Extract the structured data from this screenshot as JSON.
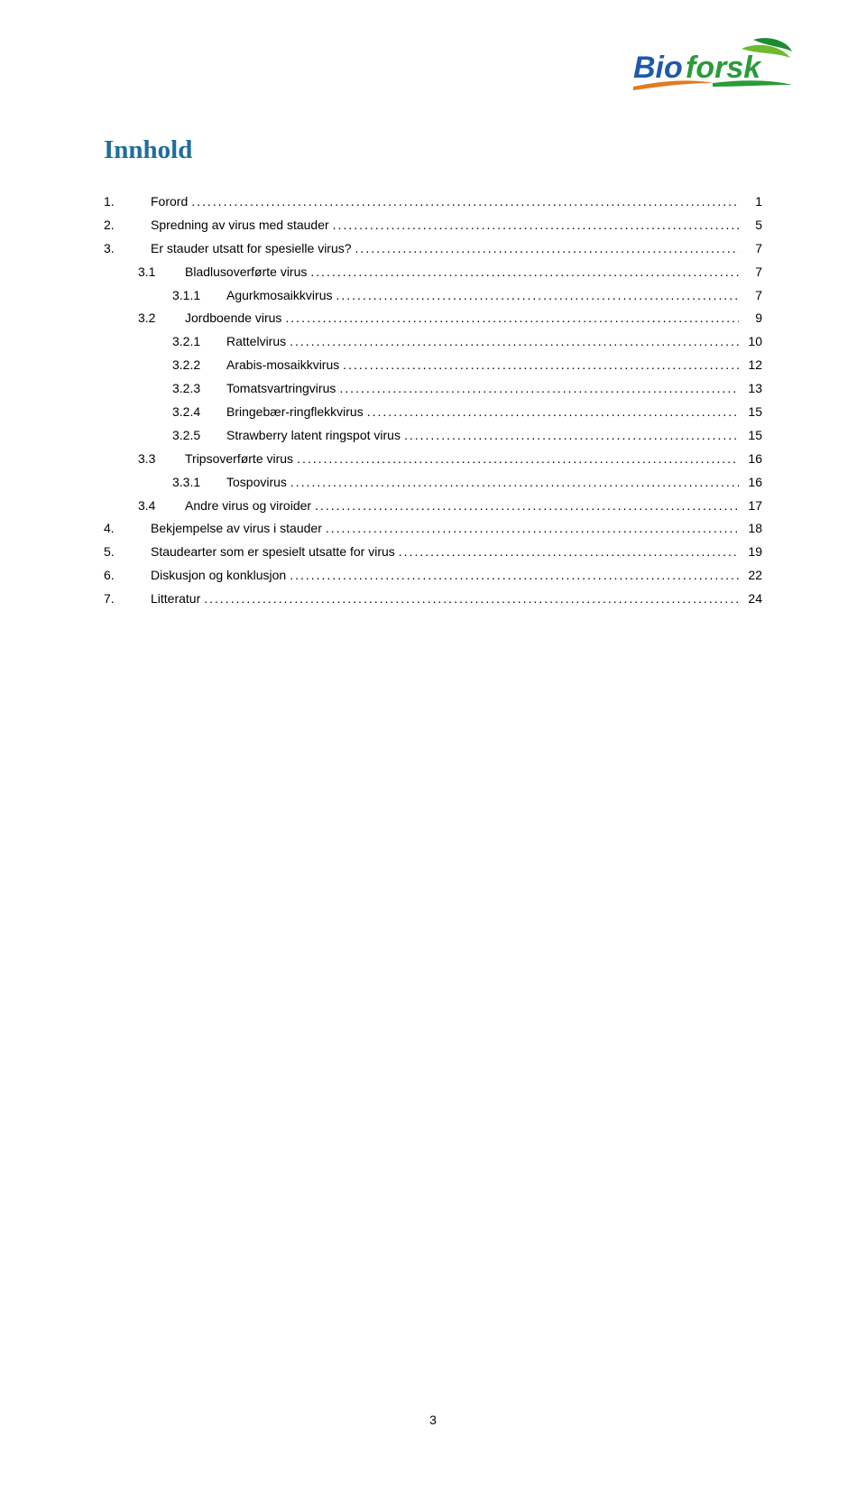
{
  "heading": {
    "text": "Innhold",
    "color": "#1f6e9a"
  },
  "logo": {
    "brand_text_color_left": "#1e5aa8",
    "brand_text_color_right": "#2b9b3a",
    "leaf_dark": "#1d8a32",
    "leaf_light": "#6fba2c",
    "swoosh_left": "#e07b1f",
    "swoosh_right": "#2b9b3a"
  },
  "toc": [
    {
      "indent": 0,
      "num": "1.",
      "label": "Forord",
      "page": "1"
    },
    {
      "indent": 0,
      "num": "2.",
      "label": "Spredning av virus med stauder",
      "page": "5"
    },
    {
      "indent": 0,
      "num": "3.",
      "label": "Er stauder utsatt for spesielle virus?",
      "page": "7"
    },
    {
      "indent": 1,
      "num": "3.1",
      "label": "Bladlusoverførte virus",
      "page": "7"
    },
    {
      "indent": 2,
      "num": "3.1.1",
      "label": "Agurkmosaikkvirus",
      "page": "7"
    },
    {
      "indent": 1,
      "num": "3.2",
      "label": "Jordboende virus",
      "page": "9"
    },
    {
      "indent": 2,
      "num": "3.2.1",
      "label": "Rattelvirus",
      "page": "10"
    },
    {
      "indent": 2,
      "num": "3.2.2",
      "label": "Arabis-mosaikkvirus",
      "page": "12"
    },
    {
      "indent": 2,
      "num": "3.2.3",
      "label": "Tomatsvartringvirus",
      "page": "13"
    },
    {
      "indent": 2,
      "num": "3.2.4",
      "label": "Bringebær-ringflekkvirus",
      "page": "15"
    },
    {
      "indent": 2,
      "num": "3.2.5",
      "label": "Strawberry latent ringspot virus",
      "page": "15"
    },
    {
      "indent": 1,
      "num": "3.3",
      "label": "Tripsoverførte virus",
      "page": "16"
    },
    {
      "indent": 2,
      "num": "3.3.1",
      "label": "Tospovirus",
      "page": "16"
    },
    {
      "indent": 1,
      "num": "3.4",
      "label": "Andre virus og viroider",
      "page": "17"
    },
    {
      "indent": 0,
      "num": "4.",
      "label": "Bekjempelse av virus i stauder",
      "page": "18"
    },
    {
      "indent": 0,
      "num": "5.",
      "label": "Staudearter som er spesielt utsatte for virus",
      "page": "19"
    },
    {
      "indent": 0,
      "num": "6.",
      "label": "Diskusjon og konklusjon",
      "page": "22"
    },
    {
      "indent": 0,
      "num": "7.",
      "label": "Litteratur",
      "page": "24"
    }
  ],
  "page_number": "3",
  "text_color": "#000000",
  "background_color": "#ffffff"
}
